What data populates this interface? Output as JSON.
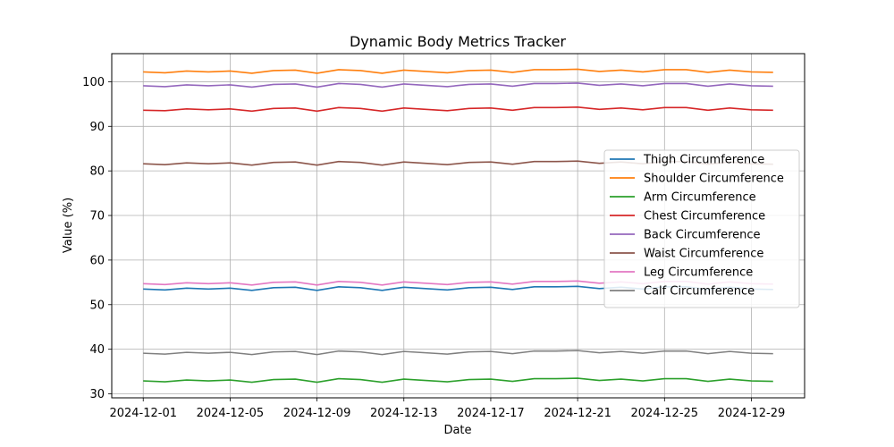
{
  "chart_data": {
    "type": "line",
    "title": "Dynamic Body Metrics Tracker",
    "xlabel": "Date",
    "ylabel": "Value (%)",
    "x": [
      "2024-12-01",
      "2024-12-02",
      "2024-12-03",
      "2024-12-04",
      "2024-12-05",
      "2024-12-06",
      "2024-12-07",
      "2024-12-08",
      "2024-12-09",
      "2024-12-10",
      "2024-12-11",
      "2024-12-12",
      "2024-12-13",
      "2024-12-14",
      "2024-12-15",
      "2024-12-16",
      "2024-12-17",
      "2024-12-18",
      "2024-12-19",
      "2024-12-20",
      "2024-12-21",
      "2024-12-22",
      "2024-12-23",
      "2024-12-24",
      "2024-12-25",
      "2024-12-26",
      "2024-12-27",
      "2024-12-28",
      "2024-12-29",
      "2024-12-30"
    ],
    "x_ticks": [
      "2024-12-01",
      "2024-12-05",
      "2024-12-09",
      "2024-12-13",
      "2024-12-17",
      "2024-12-21",
      "2024-12-25",
      "2024-12-29"
    ],
    "ylim": [
      29.1,
      106.3
    ],
    "y_ticks": [
      30,
      40,
      50,
      60,
      70,
      80,
      90,
      100
    ],
    "grid": true,
    "legend_position": "center-right",
    "series": [
      {
        "name": "Thigh Circumference",
        "color": "#1f77b4",
        "values": [
          53.5,
          53.3,
          53.7,
          53.5,
          53.7,
          53.2,
          53.8,
          53.9,
          53.2,
          54.0,
          53.8,
          53.2,
          53.9,
          53.6,
          53.3,
          53.8,
          53.9,
          53.4,
          54.0,
          54.0,
          54.1,
          53.6,
          53.9,
          53.5,
          54.0,
          54.0,
          53.4,
          53.9,
          53.5,
          53.4
        ]
      },
      {
        "name": "Shoulder Circumference",
        "color": "#ff7f0e",
        "values": [
          102.2,
          102.0,
          102.4,
          102.2,
          102.4,
          101.9,
          102.5,
          102.6,
          101.9,
          102.7,
          102.5,
          101.9,
          102.6,
          102.3,
          102.0,
          102.5,
          102.6,
          102.1,
          102.7,
          102.7,
          102.8,
          102.3,
          102.6,
          102.2,
          102.7,
          102.7,
          102.1,
          102.6,
          102.2,
          102.1
        ]
      },
      {
        "name": "Arm Circumference",
        "color": "#2ca02c",
        "values": [
          32.9,
          32.7,
          33.1,
          32.9,
          33.1,
          32.6,
          33.2,
          33.3,
          32.6,
          33.4,
          33.2,
          32.6,
          33.3,
          33.0,
          32.7,
          33.2,
          33.3,
          32.8,
          33.4,
          33.4,
          33.5,
          33.0,
          33.3,
          32.9,
          33.4,
          33.4,
          32.8,
          33.3,
          32.9,
          32.8
        ]
      },
      {
        "name": "Chest Circumference",
        "color": "#d62728",
        "values": [
          93.6,
          93.5,
          93.9,
          93.7,
          93.9,
          93.4,
          94.0,
          94.1,
          93.4,
          94.2,
          94.0,
          93.4,
          94.1,
          93.8,
          93.5,
          94.0,
          94.1,
          93.6,
          94.2,
          94.2,
          94.3,
          93.8,
          94.1,
          93.7,
          94.2,
          94.2,
          93.6,
          94.1,
          93.7,
          93.6
        ]
      },
      {
        "name": "Back Circumference",
        "color": "#9467bd",
        "values": [
          99.1,
          98.9,
          99.3,
          99.1,
          99.3,
          98.8,
          99.4,
          99.5,
          98.8,
          99.6,
          99.4,
          98.8,
          99.5,
          99.2,
          98.9,
          99.4,
          99.5,
          99.0,
          99.6,
          99.6,
          99.7,
          99.2,
          99.5,
          99.1,
          99.6,
          99.6,
          99.0,
          99.5,
          99.1,
          99.0
        ]
      },
      {
        "name": "Waist Circumference",
        "color": "#8c564b",
        "values": [
          81.6,
          81.4,
          81.8,
          81.6,
          81.8,
          81.3,
          81.9,
          82.0,
          81.3,
          82.1,
          81.9,
          81.3,
          82.0,
          81.7,
          81.4,
          81.9,
          82.0,
          81.5,
          82.1,
          82.1,
          82.2,
          81.7,
          82.0,
          81.6,
          82.1,
          82.1,
          81.5,
          82.0,
          81.6,
          81.5
        ]
      },
      {
        "name": "Leg Circumference",
        "color": "#e377c2",
        "values": [
          54.7,
          54.5,
          54.9,
          54.7,
          54.9,
          54.4,
          55.0,
          55.1,
          54.4,
          55.2,
          55.0,
          54.4,
          55.1,
          54.8,
          54.5,
          55.0,
          55.1,
          54.6,
          55.2,
          55.2,
          55.3,
          54.8,
          55.1,
          54.7,
          55.2,
          55.2,
          54.6,
          55.1,
          54.7,
          54.6
        ]
      },
      {
        "name": "Calf Circumference",
        "color": "#7f7f7f",
        "values": [
          39.1,
          38.9,
          39.3,
          39.1,
          39.3,
          38.8,
          39.4,
          39.5,
          38.8,
          39.6,
          39.4,
          38.8,
          39.5,
          39.2,
          38.9,
          39.4,
          39.5,
          39.0,
          39.6,
          39.6,
          39.7,
          39.2,
          39.5,
          39.1,
          39.6,
          39.6,
          39.0,
          39.5,
          39.1,
          39.0
        ]
      }
    ]
  }
}
